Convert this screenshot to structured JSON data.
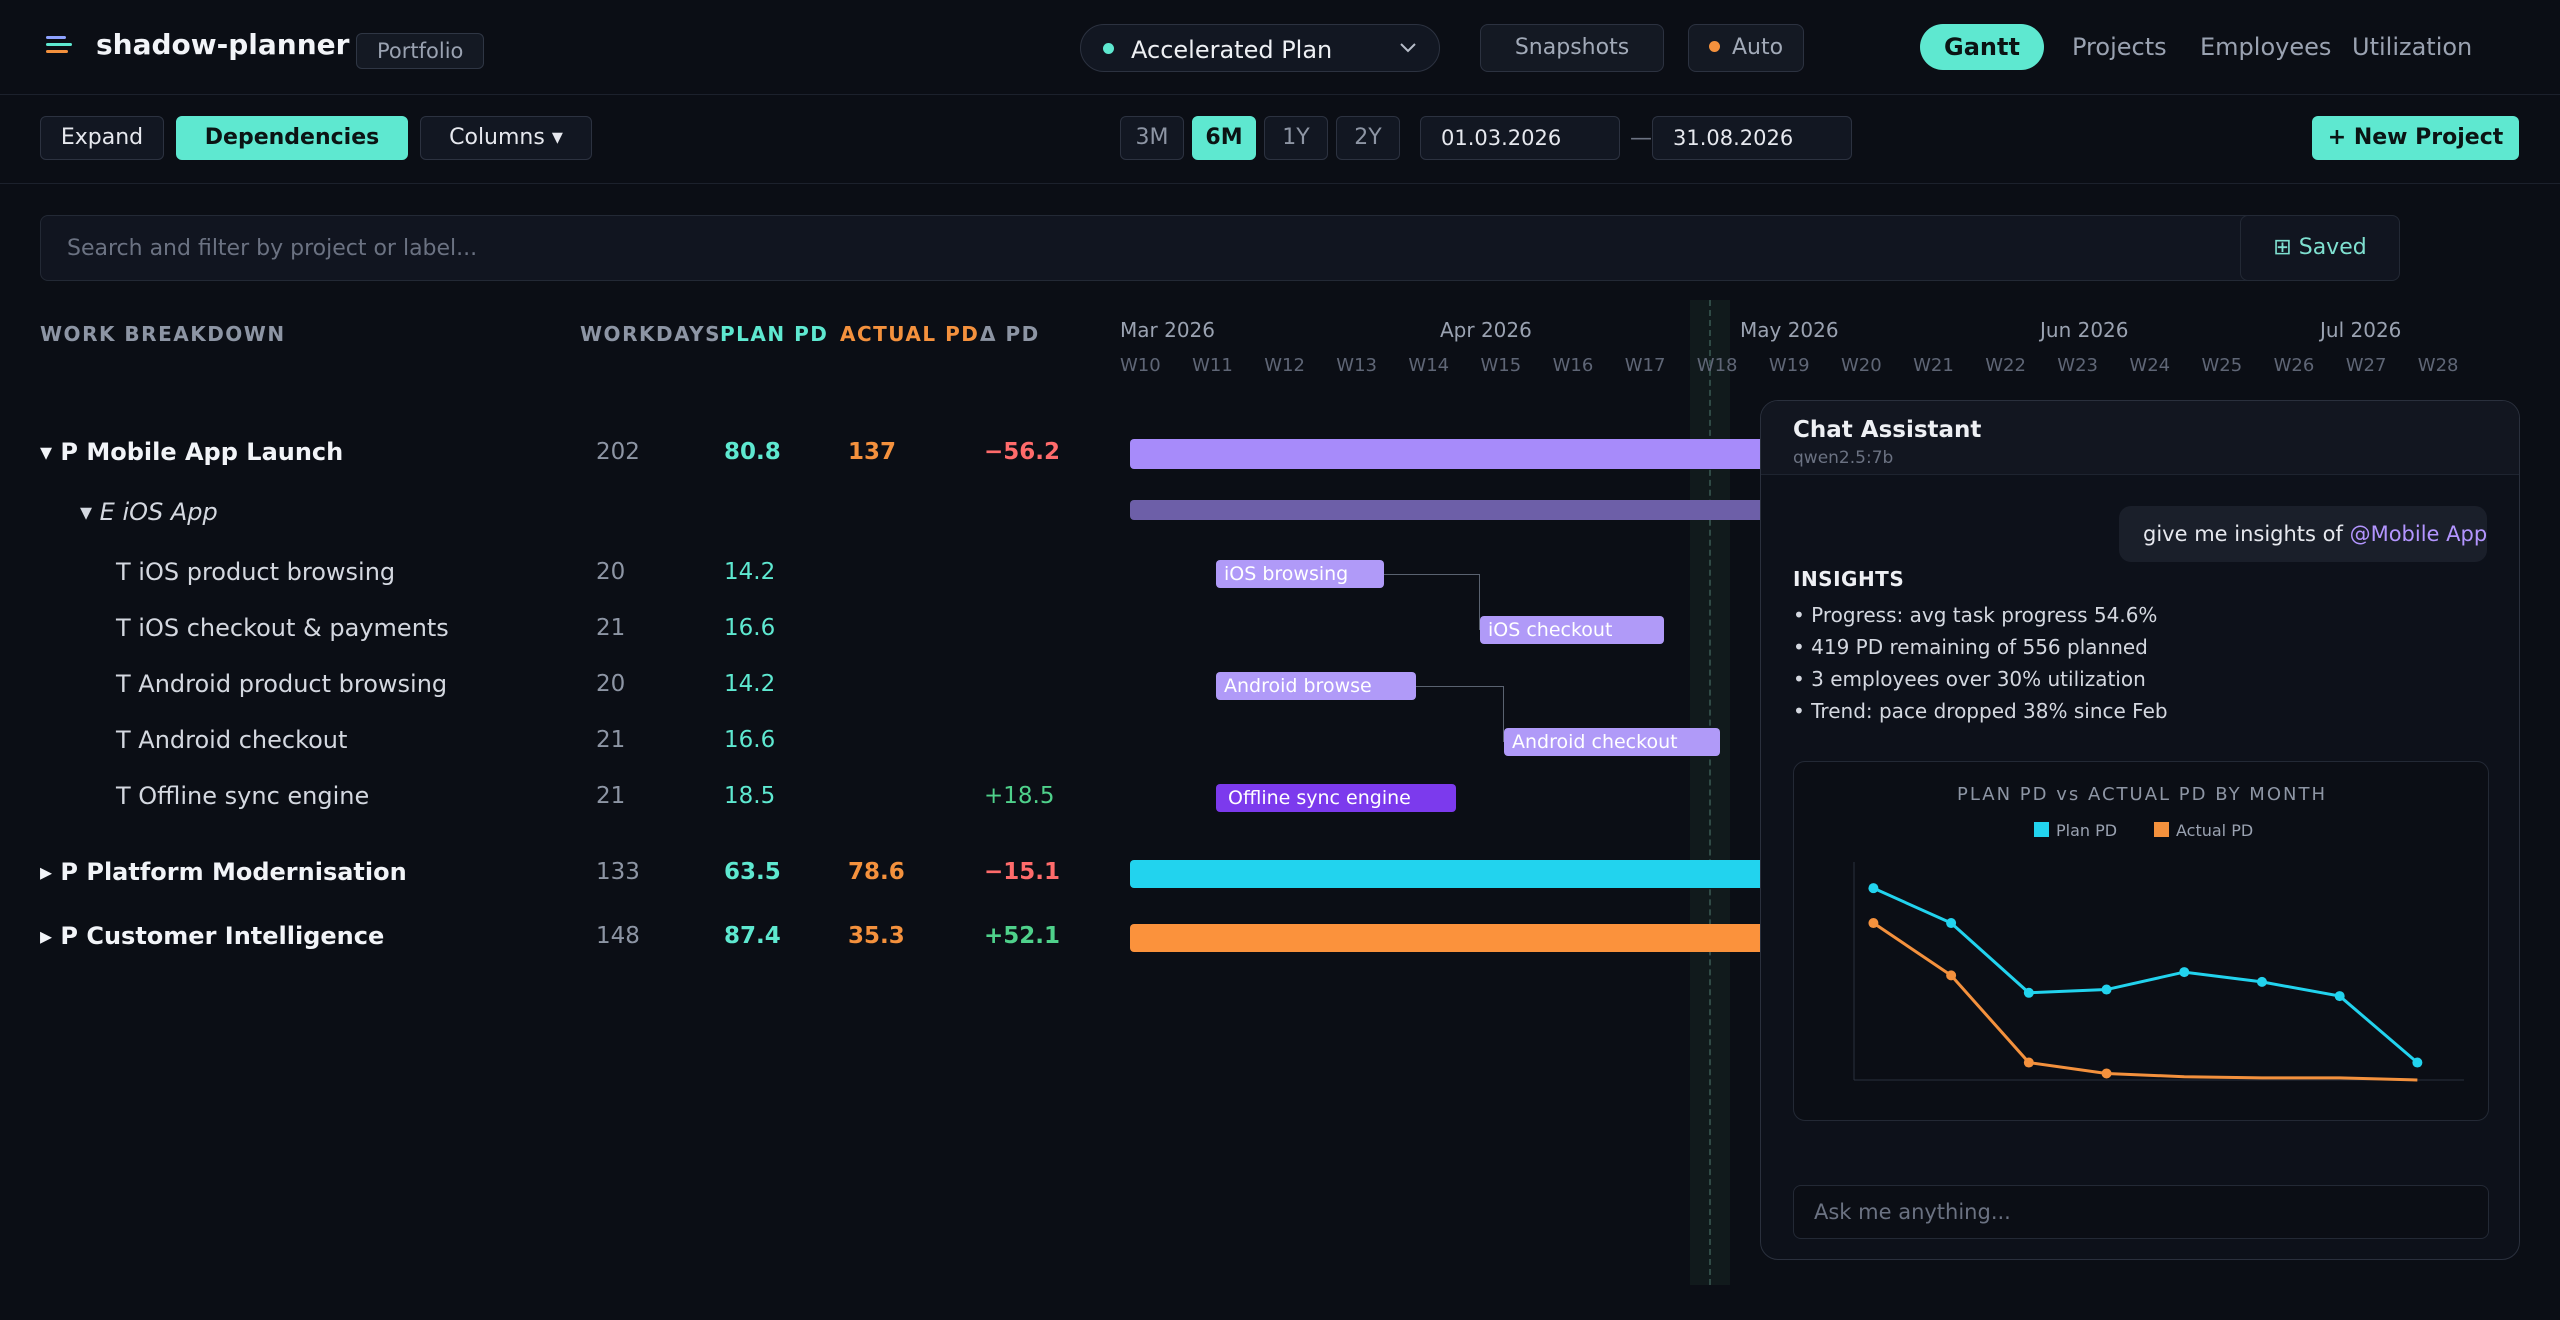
{
  "app": {
    "title": "shadow-planner",
    "badge": "Portfolio"
  },
  "plan": {
    "selected": "Accelerated Plan"
  },
  "topbar": {
    "snapshots": "Snapshots",
    "auto": "Auto"
  },
  "nav": {
    "gantt": "Gantt",
    "projects": "Projects",
    "employees": "Employees",
    "utilization": "Utilization"
  },
  "toolbar": {
    "expand": "Expand",
    "dependencies": "Dependencies",
    "columns": "Columns ▾",
    "ranges": [
      "3M",
      "6M",
      "1Y",
      "2Y"
    ],
    "active_range": "6M",
    "date_from": "01.03.2026",
    "date_sep": "—",
    "date_to": "31.08.2026",
    "new_project": "+ New Project"
  },
  "search": {
    "placeholder": "Search and filter by project or label...",
    "saved": "⊞ Saved"
  },
  "columns": {
    "work": "WORK BREAKDOWN",
    "workdays": "WORKDAYS",
    "plan": "PLAN PD",
    "actual": "ACTUAL PD",
    "delta": "Δ PD"
  },
  "timeline": {
    "months": [
      "Mar 2026",
      "Apr 2026",
      "May 2026",
      "Jun 2026",
      "Jul 2026"
    ],
    "weeks": [
      "W10",
      "W11",
      "W12",
      "W13",
      "W14",
      "W15",
      "W16",
      "W17",
      "W18",
      "W19",
      "W20",
      "W21",
      "W22",
      "W23",
      "W24",
      "W25",
      "W26",
      "W27",
      "W28"
    ]
  },
  "rows": [
    {
      "name": "▾ P Mobile App Launch",
      "workdays": "202",
      "plan": "80.8",
      "actual": "137",
      "delta": "−56.2"
    },
    {
      "name": "▾ E iOS App",
      "workdays": "",
      "plan": "",
      "actual": "",
      "delta": ""
    },
    {
      "name": "T iOS product browsing",
      "workdays": "20",
      "plan": "14.2",
      "actual": "",
      "delta": "",
      "bar": "iOS browsing"
    },
    {
      "name": "T iOS checkout & payments",
      "workdays": "21",
      "plan": "16.6",
      "actual": "",
      "delta": "",
      "bar": "iOS checkout"
    },
    {
      "name": "T Android product browsing",
      "workdays": "20",
      "plan": "14.2",
      "actual": "",
      "delta": "",
      "bar": "Android browse"
    },
    {
      "name": "T Android checkout",
      "workdays": "21",
      "plan": "16.6",
      "actual": "",
      "delta": "",
      "bar": "Android checkout"
    },
    {
      "name": "T Offline sync engine",
      "workdays": "21",
      "plan": "18.5",
      "actual": "",
      "delta": "+18.5",
      "bar": "Offline sync engine"
    },
    {
      "name": "▸ P Platform Modernisation",
      "workdays": "133",
      "plan": "63.5",
      "actual": "78.6",
      "delta": "−15.1"
    },
    {
      "name": "▸ P Customer Intelligence",
      "workdays": "148",
      "plan": "87.4",
      "actual": "35.3",
      "delta": "+52.1"
    }
  ],
  "colors": {
    "accent": "#5ee8d0",
    "plan": "#22d3ee",
    "actual": "#f4913d",
    "mobile": "#a78bfa",
    "epic": "#6d5fa8",
    "task": "#b09af8",
    "offline": "#7c3aed",
    "negative": "#ff6b6b",
    "positive": "#4fd18b"
  },
  "chat": {
    "title": "Chat Assistant",
    "model": "qwen2.5:7b",
    "user_message": "give me insights of",
    "mention": "@Mobile App",
    "insights_title": "INSIGHTS",
    "insights": [
      "• Progress: avg task progress 54.6%",
      "• 419 PD remaining of 556 planned",
      "• 3 employees over 30% utilization",
      "• Trend: pace dropped 38% since Feb"
    ],
    "input_placeholder": "Ask me anything..."
  },
  "chart_data": {
    "type": "line",
    "title": "PLAN PD vs ACTUAL PD BY MONTH",
    "xlabel": "",
    "ylabel": "",
    "x": [
      1,
      2,
      3,
      4,
      5,
      6,
      7,
      8
    ],
    "series": [
      {
        "name": "Plan PD",
        "color": "#22d3ee",
        "values": [
          88,
          72,
          40,
          41.5,
          49.5,
          45,
          38.5,
          8
        ],
        "markers": [
          true,
          true,
          true,
          true,
          true,
          true,
          true,
          true
        ]
      },
      {
        "name": "Actual PD",
        "color": "#f4913d",
        "values": [
          72,
          48,
          8,
          3,
          1.5,
          1,
          1,
          0
        ],
        "markers": [
          true,
          true,
          true,
          true,
          false,
          false,
          false,
          false
        ]
      }
    ],
    "ylim": [
      0,
      100
    ],
    "grid": false,
    "legend": "top"
  }
}
